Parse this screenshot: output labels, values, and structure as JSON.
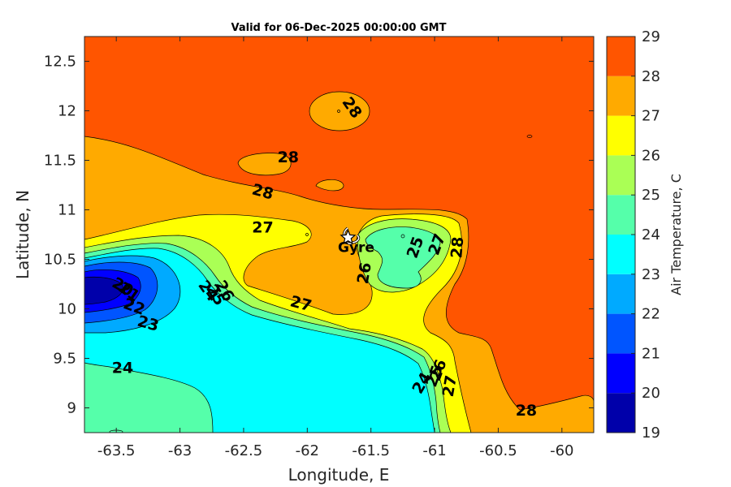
{
  "chart_data": {
    "type": "heatmap",
    "subtype": "filled-contour-map",
    "title": "Valid for 06-Dec-2025 00:00:00 GMT",
    "xlabel": "Longitude, E",
    "ylabel": "Latitude, N",
    "xlim": [
      -63.75,
      -59.75
    ],
    "ylim": [
      8.75,
      12.75
    ],
    "xticks": [
      -63.5,
      -63,
      -62.5,
      -62,
      -61.5,
      -61,
      -60.5,
      -60
    ],
    "xtick_labels": [
      "-63.5",
      "-63",
      "-62.5",
      "-62",
      "-61.5",
      "-61",
      "-60.5",
      "-60"
    ],
    "yticks": [
      9,
      9.5,
      10,
      10.5,
      11,
      11.5,
      12,
      12.5
    ],
    "ytick_labels": [
      "9",
      "9.5",
      "10",
      "10.5",
      "11",
      "11.5",
      "12",
      "12.5"
    ],
    "colorbar": {
      "label": "Air Temperature, C",
      "levels": [
        19,
        20,
        21,
        22,
        23,
        24,
        25,
        26,
        27,
        28,
        29
      ],
      "level_labels": [
        "19",
        "20",
        "21",
        "22",
        "23",
        "24",
        "25",
        "26",
        "27",
        "28",
        "29"
      ],
      "colors": [
        "#0000aa",
        "#0000ff",
        "#0055ff",
        "#00aaff",
        "#00ffff",
        "#55ffaa",
        "#aaff55",
        "#ffff00",
        "#ffaa00",
        "#ff5500",
        "#ff0000"
      ]
    },
    "contour_labels": [
      {
        "text": "28",
        "lon": -61.65,
        "lat": 12.03,
        "rot": 55
      },
      {
        "text": "28",
        "lon": -62.15,
        "lat": 11.53,
        "rot": 0
      },
      {
        "text": "28",
        "lon": -62.35,
        "lat": 11.18,
        "rot": 15
      },
      {
        "text": "27",
        "lon": -62.35,
        "lat": 10.82,
        "rot": 0
      },
      {
        "text": "27",
        "lon": -62.05,
        "lat": 10.05,
        "rot": 15
      },
      {
        "text": "26",
        "lon": -61.55,
        "lat": 10.36,
        "rot": -80
      },
      {
        "text": "25",
        "lon": -61.15,
        "lat": 10.62,
        "rot": -70
      },
      {
        "text": "27",
        "lon": -60.98,
        "lat": 10.65,
        "rot": -70
      },
      {
        "text": "28",
        "lon": -60.82,
        "lat": 10.62,
        "rot": -85
      },
      {
        "text": "26",
        "lon": -62.65,
        "lat": 10.18,
        "rot": 60
      },
      {
        "text": "25",
        "lon": -62.72,
        "lat": 10.14,
        "rot": 60
      },
      {
        "text": "24",
        "lon": -62.78,
        "lat": 10.18,
        "rot": 55
      },
      {
        "text": "20",
        "lon": -63.45,
        "lat": 10.22,
        "rot": 30
      },
      {
        "text": "21",
        "lon": -63.4,
        "lat": 10.17,
        "rot": 35
      },
      {
        "text": "22",
        "lon": -63.36,
        "lat": 10.02,
        "rot": 20
      },
      {
        "text": "23",
        "lon": -63.25,
        "lat": 9.85,
        "rot": 15
      },
      {
        "text": "24",
        "lon": -63.45,
        "lat": 9.4,
        "rot": 0
      },
      {
        "text": "26",
        "lon": -60.97,
        "lat": 9.38,
        "rot": -70
      },
      {
        "text": "25",
        "lon": -61.0,
        "lat": 9.32,
        "rot": -70
      },
      {
        "text": "24",
        "lon": -61.1,
        "lat": 9.25,
        "rot": -60
      },
      {
        "text": "27",
        "lon": -60.88,
        "lat": 9.22,
        "rot": -80
      },
      {
        "text": "28",
        "lon": -60.28,
        "lat": 8.97,
        "rot": 0
      }
    ],
    "markers": [
      {
        "name": "Gyre",
        "lon": -61.68,
        "lat": 10.72,
        "symbol": "star"
      }
    ]
  }
}
